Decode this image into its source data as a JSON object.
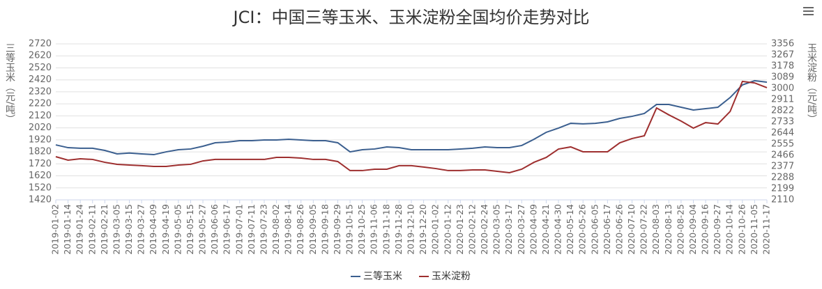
{
  "chart_data": {
    "type": "line",
    "title": "JCI：中国三等玉米、玉米淀粉全国均价走势对比",
    "y_label": "三等玉米（元/吨）",
    "y2_label": "玉米淀粉（元/吨）",
    "categories": [
      "2019-01-02",
      "2019-01-14",
      "2019-01-24",
      "2019-02-11",
      "2019-02-21",
      "2019-03-05",
      "2019-03-15",
      "2019-03-27",
      "2019-04-09",
      "2019-04-19",
      "2019-05-05",
      "2019-05-15",
      "2019-05-27",
      "2019-06-06",
      "2019-06-17",
      "2019-07-01",
      "2019-07-11",
      "2019-07-23",
      "2019-08-02",
      "2019-08-14",
      "2019-08-26",
      "2019-09-05",
      "2019-09-18",
      "2019-09-29",
      "2019-10-15",
      "2019-10-25",
      "2019-11-06",
      "2019-11-18",
      "2019-11-28",
      "2019-12-10",
      "2019-12-20",
      "2020-01-02",
      "2020-01-12",
      "2020-01-23",
      "2020-02-12",
      "2020-02-24",
      "2020-03-05",
      "2020-03-17",
      "2020-03-27",
      "2020-04-09",
      "2020-04-21",
      "2020-04-30",
      "2020-05-14",
      "2020-05-26",
      "2020-06-05",
      "2020-06-17",
      "2020-06-26",
      "2020-07-10",
      "2020-07-22",
      "2020-08-03",
      "2020-08-13",
      "2020-08-25",
      "2020-09-04",
      "2020-09-16",
      "2020-09-27",
      "2020-10-14",
      "2020-10-26",
      "2020-11-05",
      "2020-11-17"
    ],
    "series": [
      {
        "name": "三等玉米",
        "color": "#3b5f8f",
        "values": [
          1878,
          1855,
          1850,
          1850,
          1832,
          1803,
          1810,
          1803,
          1797,
          1820,
          1838,
          1844,
          1867,
          1896,
          1902,
          1913,
          1913,
          1919,
          1919,
          1925,
          1919,
          1913,
          1913,
          1896,
          1820,
          1838,
          1844,
          1861,
          1855,
          1838,
          1838,
          1838,
          1838,
          1844,
          1850,
          1861,
          1855,
          1855,
          1873,
          1925,
          1983,
          2018,
          2058,
          2053,
          2058,
          2070,
          2099,
          2116,
          2140,
          2215,
          2215,
          2192,
          2169,
          2180,
          2192,
          2273,
          2378,
          2413,
          2401
        ]
      },
      {
        "name": "玉米淀粉",
        "color": "#9e2f2f",
        "axis": "y2",
        "values": [
          2455,
          2427,
          2438,
          2433,
          2410,
          2394,
          2388,
          2383,
          2377,
          2377,
          2388,
          2394,
          2421,
          2433,
          2433,
          2433,
          2433,
          2433,
          2449,
          2449,
          2444,
          2433,
          2433,
          2416,
          2344,
          2344,
          2355,
          2355,
          2383,
          2383,
          2372,
          2360,
          2344,
          2344,
          2349,
          2349,
          2338,
          2327,
          2355,
          2410,
          2449,
          2516,
          2533,
          2494,
          2494,
          2494,
          2566,
          2600,
          2622,
          2844,
          2789,
          2739,
          2683,
          2727,
          2716,
          2816,
          3056,
          3044,
          3006
        ]
      }
    ],
    "ylim": [
      1420,
      2720
    ],
    "yticks": [
      1420,
      1520,
      1620,
      1720,
      1820,
      1920,
      2020,
      2120,
      2220,
      2320,
      2420,
      2520,
      2620,
      2720
    ],
    "y2lim": [
      2110,
      3356
    ],
    "y2ticks": [
      2110,
      2199,
      2288,
      2377,
      2466,
      2555,
      2644,
      2733,
      2822,
      2911,
      3000,
      3089,
      3178,
      3267,
      3356
    ],
    "grid": true
  }
}
